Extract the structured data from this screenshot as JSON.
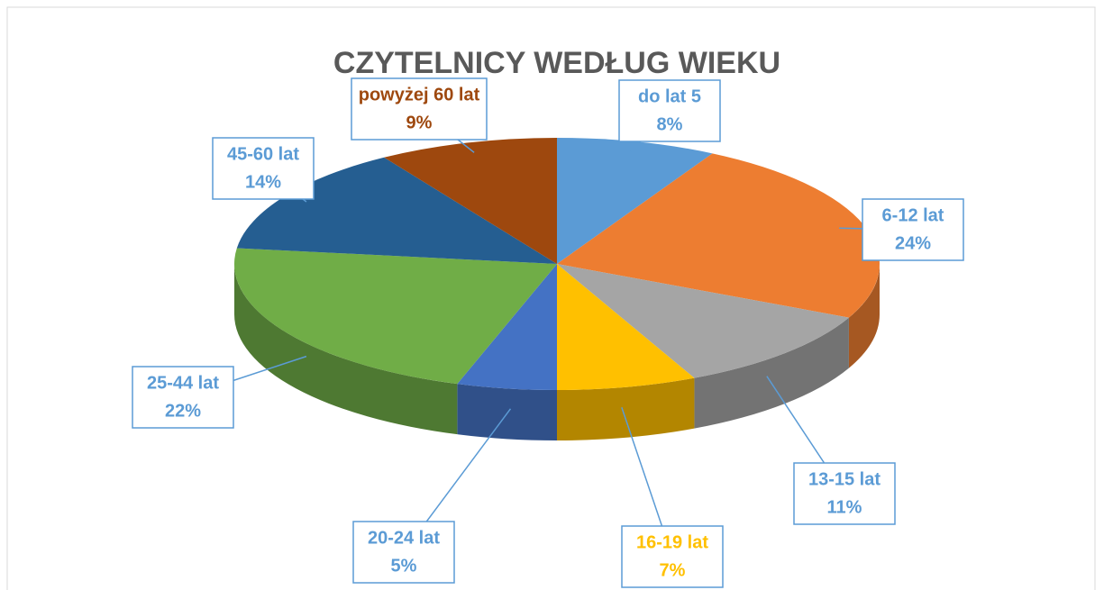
{
  "chart_data": {
    "type": "pie",
    "title": "CZYTELNICY WEDŁUG WIEKU",
    "categories": [
      "do lat 5",
      "6-12 lat",
      "13-15 lat",
      "16-19 lat",
      "20-24 lat",
      "25-44 lat",
      "45-60 lat",
      "powyżej 60 lat"
    ],
    "values": [
      8,
      24,
      11,
      7,
      5,
      22,
      14,
      9
    ],
    "value_labels": [
      "8%",
      "24%",
      "11%",
      "7%",
      "5%",
      "22%",
      "14%",
      "9%"
    ],
    "colors": [
      "#5b9bd5",
      "#ed7d31",
      "#a5a5a5",
      "#ffc000",
      "#4472c4",
      "#70ad47",
      "#255e91",
      "#9e480e"
    ],
    "label_colors": [
      "#5b9bd5",
      "#5b9bd5",
      "#5b9bd5",
      "#ffc000",
      "#5b9bd5",
      "#5b9bd5",
      "#5b9bd5",
      "#9e480e"
    ]
  }
}
